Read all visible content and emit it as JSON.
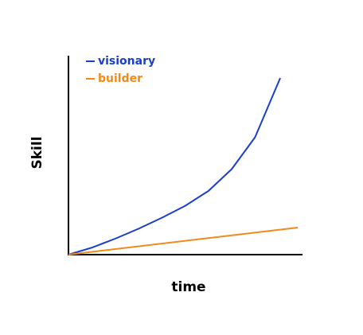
{
  "chart_data": {
    "type": "line",
    "x_label": "time",
    "y_label": "Skill",
    "xlim": [
      0,
      10
    ],
    "ylim": [
      0,
      10
    ],
    "series": [
      {
        "name": "visionary",
        "color": "#1a3fcc",
        "x": [
          0,
          1,
          2,
          3,
          4,
          5,
          6,
          7,
          8,
          9.08
        ],
        "values": [
          0,
          0.35,
          0.8,
          1.3,
          1.85,
          2.45,
          3.2,
          4.3,
          5.9,
          8.88
        ]
      },
      {
        "name": "builder",
        "color": "#f28a1a",
        "x": [
          0,
          9.83
        ],
        "values": [
          0,
          1.36
        ]
      }
    ]
  }
}
